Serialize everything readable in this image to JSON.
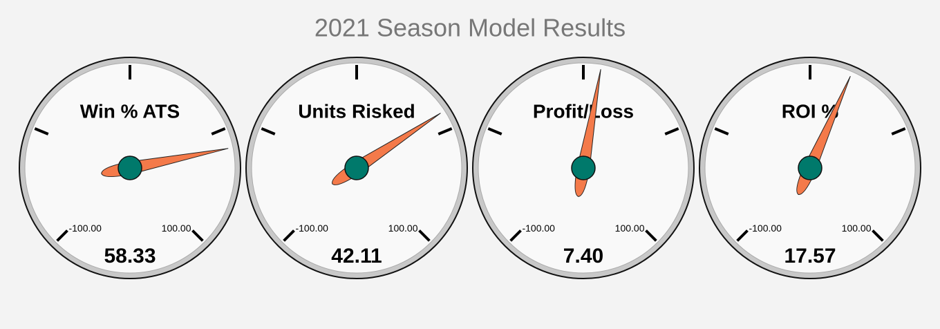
{
  "chart_data": {
    "type": "gauge",
    "title": "2021 Season Model Results",
    "ylim": [
      -100,
      100
    ],
    "ticks": [
      {
        "value": -100,
        "label": "-100.00"
      },
      {
        "value": -50
      },
      {
        "value": 0
      },
      {
        "value": 50
      },
      {
        "value": 100,
        "label": "100.00"
      }
    ],
    "needle_color": "#f47a4a",
    "hub_color": "#00796b",
    "series": [
      {
        "name": "Win % ATS",
        "values": [
          58.33
        ],
        "value_labels": [
          "58.33"
        ]
      },
      {
        "name": "Units Risked",
        "values": [
          42.11
        ],
        "value_labels": [
          "42.11"
        ]
      },
      {
        "name": "Profit/Loss",
        "values": [
          7.4
        ],
        "value_labels": [
          "7.40"
        ]
      },
      {
        "name": "ROI %",
        "values": [
          17.57
        ],
        "value_labels": [
          "17.57"
        ]
      }
    ]
  }
}
